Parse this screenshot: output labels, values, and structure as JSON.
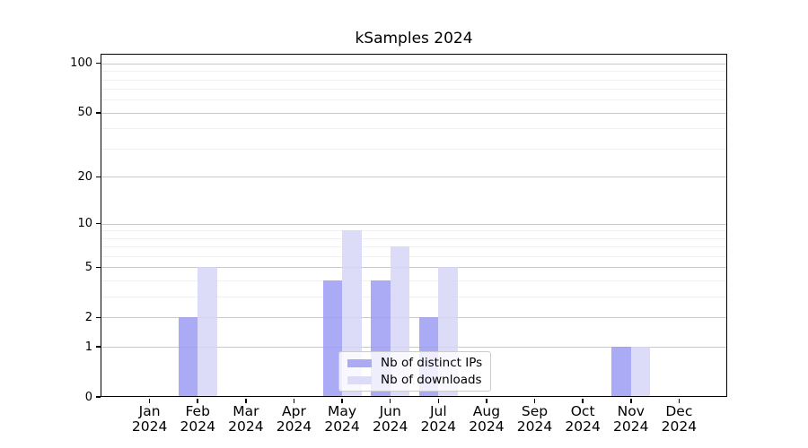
{
  "chart_data": {
    "type": "bar",
    "title": "kSamples 2024",
    "categories": [
      "Jan",
      "Feb",
      "Mar",
      "Apr",
      "May",
      "Jun",
      "Jul",
      "Aug",
      "Sep",
      "Oct",
      "Nov",
      "Dec"
    ],
    "x_year_label": "2024",
    "series": [
      {
        "name": "Nb of distinct IPs",
        "color": "#9b9bf3",
        "legend_color": "#aaaaf5",
        "values": [
          0,
          2,
          0,
          0,
          4,
          4,
          2,
          0,
          0,
          0,
          1,
          0
        ]
      },
      {
        "name": "Nb of downloads",
        "color": "#d6d6f7",
        "legend_color": "#dcdcf8",
        "values": [
          0,
          5,
          0,
          0,
          9,
          7,
          5,
          0,
          0,
          0,
          1,
          0
        ]
      }
    ],
    "yticks": [
      0,
      1,
      2,
      5,
      10,
      20,
      50,
      100
    ],
    "minor_grid_values": [
      3,
      4,
      6,
      7,
      8,
      9,
      30,
      40,
      60,
      70,
      80,
      90
    ],
    "scale": "log1p",
    "ylim": [
      0,
      112
    ],
    "grid": "both",
    "legend_position": "lower-center"
  },
  "colors": {
    "major_grid": "#c9c9c9",
    "minor_grid": "#f0f0f0",
    "axis": "#000000",
    "text": "#000000",
    "legend_border": "#cccccc"
  }
}
